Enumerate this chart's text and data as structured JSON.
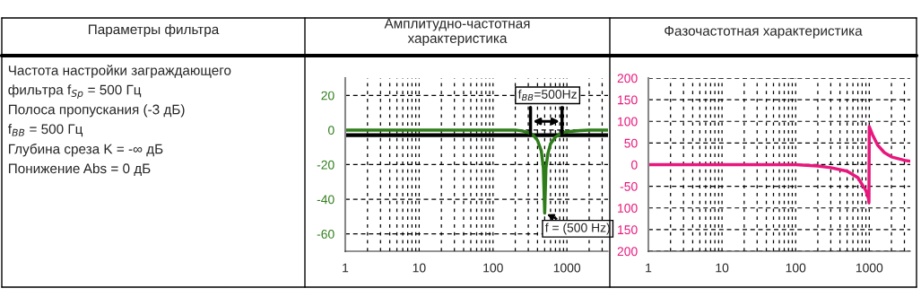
{
  "chart_data": [
    {
      "type": "other",
      "title": "Параметры фильтра",
      "annotations": [
        "Частота настройки заграждающего",
        "фильтра f$_{Sp}$ = 500 Гц",
        "Полоса пропускания (-3 дБ)",
        "f$_{BB}$ = 500 Гц",
        "Глубина среза K = -∞ дБ",
        "Понижение Abs = 0 дБ"
      ]
    },
    {
      "type": "line",
      "title": "Амплитудно-частотная\nхарактеристика",
      "log": "x",
      "grid": true,
      "line_style": "solid",
      "xlim": [
        1,
        3600
      ],
      "xticks": [
        1,
        10,
        100,
        1000
      ],
      "ylim": [
        -70,
        30
      ],
      "yticks": [
        20,
        0,
        {
          "value": -20,
          "label": "-20"
        },
        {
          "value": -40,
          "label": "-40"
        },
        {
          "value": -60,
          "label": "-60"
        }
      ],
      "series": [
        {
          "color": "#2e7d1a",
          "x": [
            1,
            10,
            100,
            200,
            250,
            300,
            350,
            400,
            450,
            480,
            500,
            520,
            550,
            600,
            700,
            800,
            900,
            1000,
            1500,
            2000,
            3600
          ],
          "values": [
            0,
            0,
            0,
            0,
            -0.5,
            -1.5,
            -3,
            -6,
            -12,
            -22,
            -48,
            -22,
            -14,
            -8,
            -4,
            -2.5,
            -1.5,
            -1,
            -0.3,
            0,
            0
          ]
        }
      ],
      "ref_lines": [
        {
          "axis": "y",
          "value": -3,
          "color": "#000000",
          "line_style": "solid"
        }
      ],
      "annotations": [
        "f$_{BB}$=500Hz",
        {
          "text": "f = (500 Hz)",
          "x": 500,
          "y": -48
        }
      ]
    },
    {
      "type": "line",
      "title": "Фазочастотная характеристика",
      "log": "x",
      "grid": true,
      "line_style": "solid",
      "xlim": [
        1,
        3600
      ],
      "xticks": [
        1,
        10,
        100,
        1000
      ],
      "ylim": [
        -200,
        200
      ],
      "yticks": [
        200,
        150,
        100,
        50,
        0,
        {
          "value": -50,
          "label": "-50"
        },
        {
          "value": -100,
          "label": "100"
        },
        {
          "value": -150,
          "label": "150"
        },
        {
          "value": -200,
          "label": "200"
        }
      ],
      "series": [
        {
          "color": "#e8177d",
          "x": [
            1,
            10,
            100,
            200,
            300,
            500,
            700,
            900,
            980,
            990,
            1000,
            1100,
            1300,
            1600,
            2000,
            3000,
            3600
          ],
          "values": [
            0,
            0,
            0,
            -3,
            -7,
            -15,
            -30,
            -60,
            -80,
            -88,
            88,
            70,
            45,
            28,
            18,
            10,
            8
          ]
        }
      ]
    }
  ]
}
